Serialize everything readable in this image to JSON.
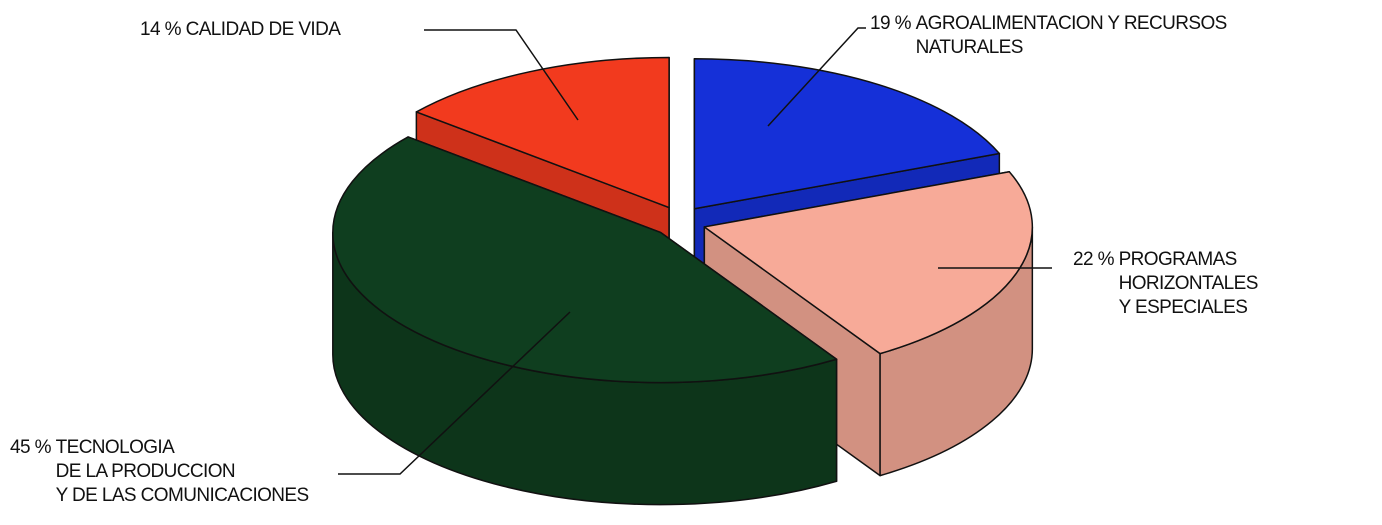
{
  "chart_data": {
    "type": "pie",
    "categories": [
      "AGROALIMENTACION Y RECURSOS\nNATURALES",
      "PROGRAMAS\nHORIZONTALES\nY ESPECIALES",
      "TECNOLOGIA\nDE LA PRODUCCION\nY DE LAS COMUNICACIONES",
      "CALIDAD DE VIDA"
    ],
    "values": [
      19,
      22,
      45,
      14
    ],
    "value_labels": [
      "19 %",
      "22 %",
      "45 %",
      "14 %"
    ],
    "colors": [
      "#1530d8",
      "#f7aa98",
      "#0f3e1f",
      "#f23a1e"
    ]
  }
}
